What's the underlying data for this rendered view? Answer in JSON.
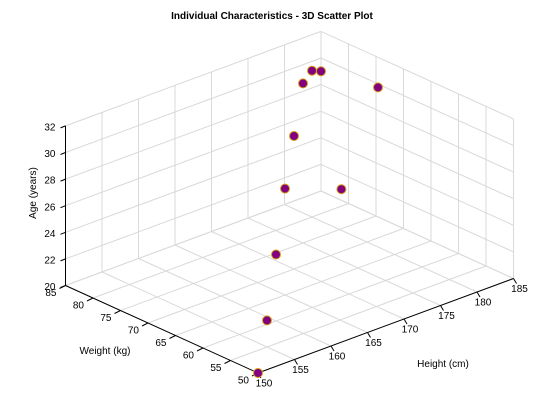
{
  "chart_data": {
    "type": "scatter3d",
    "title": "Individual Characteristics - 3D Scatter Plot",
    "xlabel": "Height (cm)",
    "ylabel": "Weight (kg)",
    "zlabel": "Age (years)",
    "xlim": [
      150,
      185
    ],
    "ylim": [
      50,
      85
    ],
    "zlim": [
      20,
      32
    ],
    "xticks": [
      150,
      155,
      160,
      165,
      170,
      175,
      180,
      185
    ],
    "yticks": [
      50,
      55,
      60,
      65,
      70,
      75,
      80,
      85
    ],
    "zticks": [
      20,
      22,
      24,
      26,
      28,
      30,
      32
    ],
    "grid": true,
    "marker_fill": "#800080",
    "marker_edge": "#d4a017",
    "points": [
      {
        "x": 150,
        "y": 50,
        "z": 20
      },
      {
        "x": 155,
        "y": 55,
        "z": 22
      },
      {
        "x": 160,
        "y": 60,
        "z": 25
      },
      {
        "x": 165,
        "y": 65,
        "z": 28
      },
      {
        "x": 170,
        "y": 70,
        "z": 30
      },
      {
        "x": 175,
        "y": 75,
        "z": 32
      },
      {
        "x": 180,
        "y": 80,
        "z": 31
      },
      {
        "x": 185,
        "y": 85,
        "z": 29
      },
      {
        "x": 178,
        "y": 72,
        "z": 24
      },
      {
        "x": 180,
        "y": 68,
        "z": 32
      }
    ]
  }
}
